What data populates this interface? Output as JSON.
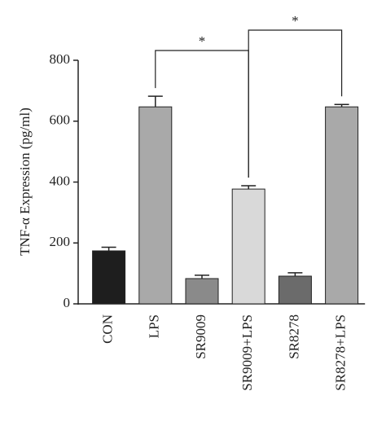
{
  "chart_data": {
    "type": "bar",
    "ylabel": "TNF-α Expression (pg/ml)",
    "categories": [
      "CON",
      "LPS",
      "SR9009",
      "SR9009+LPS",
      "SR8278",
      "SR8278+LPS"
    ],
    "values": [
      174,
      647,
      83,
      377,
      91,
      647
    ],
    "errors": [
      12,
      35,
      11,
      11,
      11,
      8
    ],
    "colors": [
      "#1e1e1e",
      "#a9a9a9",
      "#8a8a8a",
      "#d9d9d9",
      "#6b6b6b",
      "#a9a9a9"
    ],
    "ylim": [
      0,
      800
    ],
    "yticks": [
      0,
      200,
      400,
      600,
      800
    ],
    "annotations": [
      {
        "text": "*",
        "groups": [
          "LPS",
          "SR9009+LPS"
        ]
      },
      {
        "text": "*",
        "groups": [
          "SR9009+LPS",
          "SR8278+LPS"
        ]
      }
    ]
  }
}
